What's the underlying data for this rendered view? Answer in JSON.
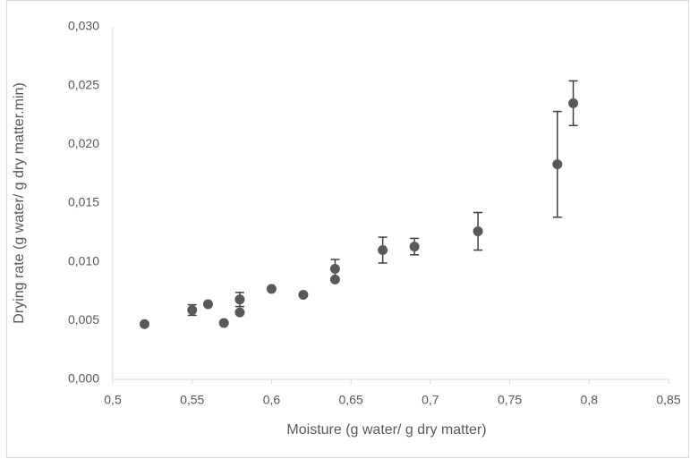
{
  "chart_data": {
    "type": "scatter",
    "x_label": "Moisture (g water/ g dry matter)",
    "y_label": "Drying rate (g water/ g dry matter.min)",
    "color": "#595959",
    "x": [
      0.52,
      0.55,
      0.56,
      0.57,
      0.58,
      0.58,
      0.6,
      0.62,
      0.64,
      0.64,
      0.67,
      0.69,
      0.73,
      0.78,
      0.79
    ],
    "values": [
      0.0047,
      0.0059,
      0.0064,
      0.0048,
      0.0068,
      0.0057,
      0.0077,
      0.0072,
      0.0094,
      0.0085,
      0.011,
      0.0113,
      0.0126,
      0.0183,
      0.0235
    ],
    "errors": [
      null,
      0.00045,
      null,
      null,
      0.0006,
      null,
      null,
      null,
      0.0008,
      null,
      0.0011,
      0.0007,
      0.0016,
      0.0045,
      0.0019
    ],
    "xlim": [
      0.5,
      0.85
    ],
    "xticks": [
      {
        "value": 0.5,
        "label": "0,5"
      },
      {
        "value": 0.55,
        "label": "0,55"
      },
      {
        "value": 0.6,
        "label": "0,6"
      },
      {
        "value": 0.65,
        "label": "0,65"
      },
      {
        "value": 0.7,
        "label": "0,7"
      },
      {
        "value": 0.75,
        "label": "0,75"
      },
      {
        "value": 0.8,
        "label": "0,8"
      },
      {
        "value": 0.85,
        "label": "0,85"
      }
    ],
    "ylim": [
      0,
      0.03
    ],
    "yticks": [
      {
        "value": 0,
        "label": "0,000"
      },
      {
        "value": 0.005,
        "label": "0,005"
      },
      {
        "value": 0.01,
        "label": "0,010"
      },
      {
        "value": 0.015,
        "label": "0,015"
      },
      {
        "value": 0.02,
        "label": "0,020"
      },
      {
        "value": 0.025,
        "label": "0,025"
      },
      {
        "value": 0.03,
        "label": "0,030"
      }
    ],
    "grid": false
  }
}
